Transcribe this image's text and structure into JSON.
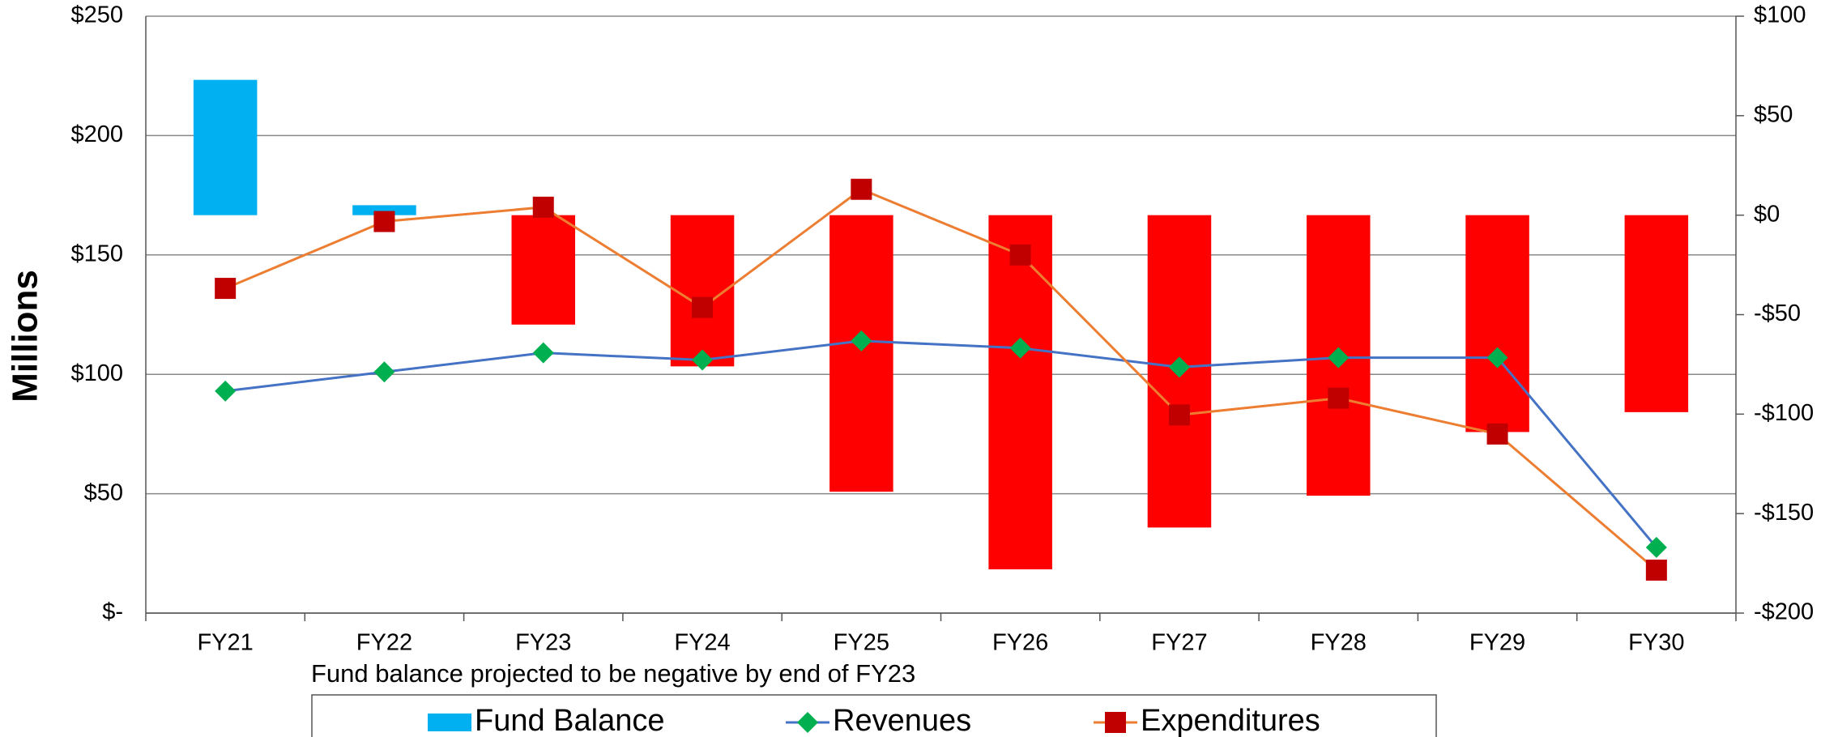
{
  "chart_data": {
    "type": "bar-line-combo",
    "y_label": "Millions",
    "annotation": "Fund balance projected to be negative by end of FY23",
    "categories": [
      "FY21",
      "FY22",
      "FY23",
      "FY24",
      "FY25",
      "FY26",
      "FY27",
      "FY28",
      "FY29",
      "FY30"
    ],
    "ylim": [
      0,
      250
    ],
    "yticks": [
      {
        "value": 0,
        "label": "$-"
      },
      {
        "value": 50,
        "label": "$50"
      },
      {
        "value": 100,
        "label": "$100"
      },
      {
        "value": 150,
        "label": "$150"
      },
      {
        "value": 200,
        "label": "$200"
      },
      {
        "value": 250,
        "label": "$250"
      }
    ],
    "y2lim": [
      -200,
      100
    ],
    "y2ticks": [
      {
        "value": -200,
        "label": "-$200"
      },
      {
        "value": -150,
        "label": "-$150"
      },
      {
        "value": -100,
        "label": "-$100"
      },
      {
        "value": -50,
        "label": "-$50"
      },
      {
        "value": 0,
        "label": "$0"
      },
      {
        "value": 50,
        "label": "$50"
      },
      {
        "value": 100,
        "label": "$100"
      }
    ],
    "grid": true,
    "legend": "bottom",
    "series": [
      {
        "name": "Fund Balance",
        "kind": "bar",
        "axis": "y2",
        "color": "#00b0f0",
        "negative_color": "#ff0000",
        "values": [
          68,
          5,
          -55,
          -76,
          -139,
          -178,
          -157,
          -141,
          -109,
          -99
        ]
      },
      {
        "name": "Revenues",
        "kind": "line",
        "marker": "diamond",
        "color": "#4472c4",
        "marker_color": "#00b050",
        "values": [
          93,
          101,
          109,
          106,
          114,
          111,
          103,
          107,
          107,
          27.5
        ]
      },
      {
        "name": "Expenditures",
        "kind": "line",
        "marker": "square",
        "color": "#ed7d31",
        "marker_color": "#c00000",
        "values": [
          136,
          164,
          170,
          128,
          177.5,
          150,
          83,
          90,
          75,
          18
        ]
      }
    ]
  }
}
